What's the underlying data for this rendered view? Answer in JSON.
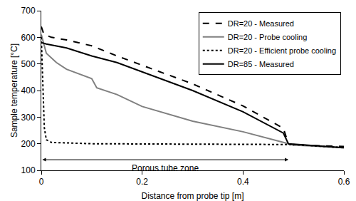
{
  "chart_data": {
    "type": "line",
    "x_label": "Distance from probe tip [m]",
    "y_label": "Sample temperature [°C]",
    "xlim": [
      0,
      0.6
    ],
    "xticks": [
      0,
      0.2,
      0.4,
      0.6
    ],
    "ylim": [
      100,
      700
    ],
    "yticks": [
      100,
      200,
      300,
      400,
      500,
      600,
      700
    ],
    "grid": false,
    "legend": "top right",
    "series": [
      {
        "name": "DR=20 - Measured",
        "color": "#000000",
        "line_style": "dash",
        "x": [
          0,
          0.005,
          0.02,
          0.05,
          0.1,
          0.15,
          0.2,
          0.3,
          0.4,
          0.48,
          0.49,
          0.5,
          0.6
        ],
        "values": [
          640,
          612,
          600,
          590,
          568,
          530,
          495,
          425,
          342,
          258,
          200,
          195,
          190
        ]
      },
      {
        "name": "DR=20 - Probe cooling",
        "color": "#808080",
        "line_style": "solid",
        "x": [
          0,
          0.01,
          0.03,
          0.05,
          0.1,
          0.11,
          0.15,
          0.2,
          0.3,
          0.4,
          0.48,
          0.5,
          0.6
        ],
        "values": [
          610,
          540,
          505,
          480,
          445,
          410,
          385,
          340,
          285,
          245,
          205,
          195,
          185
        ]
      },
      {
        "name": "DR=20 - Efficient probe cooling",
        "color": "#000000",
        "line_style": "dot",
        "x": [
          0,
          0.003,
          0.006,
          0.01,
          0.02,
          0.1,
          0.3,
          0.5,
          0.6
        ],
        "values": [
          600,
          400,
          260,
          215,
          205,
          200,
          198,
          197,
          185
        ]
      },
      {
        "name": "DR=85 - Measured",
        "color": "#000000",
        "line_style": "solid",
        "x": [
          0,
          0.01,
          0.05,
          0.1,
          0.15,
          0.2,
          0.3,
          0.4,
          0.48,
          0.49,
          0.6
        ],
        "values": [
          580,
          575,
          560,
          530,
          505,
          470,
          400,
          320,
          240,
          200,
          185
        ]
      }
    ],
    "annotations": [
      {
        "text": "Porous tube zone",
        "x_start": 0,
        "x_end": 0.49,
        "y": 140
      }
    ]
  }
}
